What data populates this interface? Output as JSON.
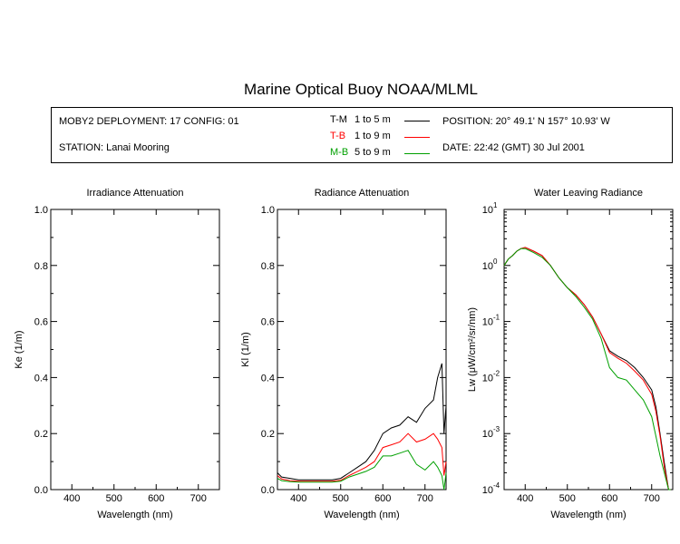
{
  "header": {
    "title": "Marine Optical Buoy NOAA/MLML",
    "deployment": "MOBY2 DEPLOYMENT: 17 CONFIG: 01",
    "station": "STATION: Lanai Mooring",
    "position": "POSITION: 20° 49.1' N   157° 10.93' W",
    "date": "DATE: 22:42 (GMT) 30 Jul 2001"
  },
  "legend": [
    {
      "code": "T-M",
      "range": "1 to 5  m",
      "color": "#000000"
    },
    {
      "code": "T-B",
      "range": "1 to 9  m",
      "color": "#ff0000"
    },
    {
      "code": "M-B",
      "range": "5 to 9  m",
      "color": "#00a000"
    }
  ],
  "chart_data": [
    {
      "type": "line",
      "title": "Irradiance Attenuation",
      "xlabel": "Wavelength (nm)",
      "ylabel": "Ke  (1/m)",
      "xlim": [
        350,
        750
      ],
      "ylim": [
        0,
        1.0
      ],
      "xticks": [
        400,
        500,
        600,
        700
      ],
      "yticks": [
        "0.0",
        "0.2",
        "0.4",
        "0.6",
        "0.8",
        "1.0"
      ],
      "series": []
    },
    {
      "type": "line",
      "title": "Radiance Attenuation",
      "xlabel": "Wavelength (nm)",
      "ylabel": "Kl  (1/m)",
      "xlim": [
        350,
        750
      ],
      "ylim": [
        0,
        1.0
      ],
      "xticks": [
        400,
        500,
        600,
        700
      ],
      "yticks": [
        "0.0",
        "0.2",
        "0.4",
        "0.6",
        "0.8",
        "1.0"
      ],
      "series": [
        {
          "name": "T-M",
          "color": "#000000",
          "x": [
            350,
            360,
            380,
            400,
            450,
            480,
            500,
            520,
            540,
            560,
            580,
            600,
            620,
            640,
            660,
            680,
            700,
            720,
            730,
            740,
            745,
            750
          ],
          "y": [
            0.06,
            0.045,
            0.04,
            0.035,
            0.035,
            0.035,
            0.04,
            0.06,
            0.08,
            0.1,
            0.14,
            0.2,
            0.22,
            0.23,
            0.26,
            0.24,
            0.29,
            0.32,
            0.4,
            0.45,
            0.2,
            0.3
          ]
        },
        {
          "name": "T-B",
          "color": "#ff0000",
          "x": [
            350,
            360,
            380,
            400,
            450,
            480,
            500,
            520,
            540,
            560,
            580,
            600,
            620,
            640,
            660,
            680,
            700,
            720,
            730,
            740,
            745,
            750
          ],
          "y": [
            0.05,
            0.038,
            0.032,
            0.03,
            0.03,
            0.03,
            0.033,
            0.05,
            0.065,
            0.08,
            0.1,
            0.15,
            0.16,
            0.17,
            0.2,
            0.17,
            0.18,
            0.2,
            0.18,
            0.15,
            0.05,
            0.1
          ]
        },
        {
          "name": "M-B",
          "color": "#00a000",
          "x": [
            350,
            360,
            380,
            400,
            450,
            480,
            500,
            520,
            540,
            560,
            580,
            600,
            620,
            640,
            660,
            680,
            700,
            720,
            730,
            740,
            745,
            750
          ],
          "y": [
            0.04,
            0.032,
            0.028,
            0.027,
            0.027,
            0.027,
            0.03,
            0.045,
            0.055,
            0.065,
            0.08,
            0.12,
            0.12,
            0.13,
            0.14,
            0.09,
            0.07,
            0.1,
            0.08,
            0.05,
            0.0,
            0.06
          ]
        }
      ]
    },
    {
      "type": "line",
      "title": "Water Leaving Radiance",
      "xlabel": "Wavelength (nm)",
      "ylabel": "Lw  (μW/cm²/sr/nm)",
      "xlim": [
        350,
        750
      ],
      "ylim": [
        0.0001,
        10
      ],
      "yscale": "log",
      "xticks": [
        400,
        500,
        600,
        700
      ],
      "yticks": [
        {
          "base": "10",
          "exp": "1",
          "v": 10
        },
        {
          "base": "10",
          "exp": "0",
          "v": 1
        },
        {
          "base": "10",
          "exp": "-1",
          "v": 0.1
        },
        {
          "base": "10",
          "exp": "-2",
          "v": 0.01
        },
        {
          "base": "10",
          "exp": "-3",
          "v": 0.001
        },
        {
          "base": "10",
          "exp": "-4",
          "v": 0.0001
        }
      ],
      "series": [
        {
          "name": "T-M",
          "color": "#000000",
          "x": [
            350,
            360,
            370,
            380,
            390,
            400,
            420,
            440,
            460,
            480,
            500,
            520,
            540,
            560,
            580,
            600,
            620,
            640,
            660,
            680,
            700,
            710,
            720,
            730,
            740,
            745
          ],
          "y": [
            1.0,
            1.3,
            1.5,
            1.8,
            2.0,
            2.1,
            1.8,
            1.5,
            1.0,
            0.6,
            0.4,
            0.3,
            0.2,
            0.12,
            0.06,
            0.03,
            0.024,
            0.02,
            0.015,
            0.01,
            0.006,
            0.003,
            0.001,
            0.0003,
            0.0001,
            8e-05
          ]
        },
        {
          "name": "T-B",
          "color": "#ff0000",
          "x": [
            350,
            360,
            370,
            380,
            390,
            400,
            420,
            440,
            460,
            480,
            500,
            520,
            540,
            560,
            580,
            600,
            620,
            640,
            660,
            680,
            700,
            710,
            720,
            730,
            740,
            745
          ],
          "y": [
            1.0,
            1.3,
            1.5,
            1.8,
            2.0,
            2.1,
            1.8,
            1.5,
            1.0,
            0.6,
            0.4,
            0.3,
            0.2,
            0.12,
            0.06,
            0.028,
            0.022,
            0.018,
            0.013,
            0.009,
            0.005,
            0.0025,
            0.0009,
            0.00025,
            0.0001,
            8e-05
          ]
        },
        {
          "name": "M-B",
          "color": "#00a000",
          "x": [
            350,
            360,
            370,
            380,
            390,
            400,
            420,
            440,
            460,
            480,
            500,
            520,
            540,
            560,
            580,
            600,
            620,
            640,
            660,
            680,
            700,
            710,
            720,
            730,
            740,
            745
          ],
          "y": [
            1.0,
            1.3,
            1.5,
            1.8,
            2.0,
            2.0,
            1.7,
            1.4,
            1.0,
            0.6,
            0.4,
            0.28,
            0.18,
            0.11,
            0.05,
            0.015,
            0.01,
            0.009,
            0.006,
            0.004,
            0.002,
            0.0009,
            0.0004,
            0.0002,
            0.0001,
            8e-05
          ]
        }
      ]
    }
  ]
}
